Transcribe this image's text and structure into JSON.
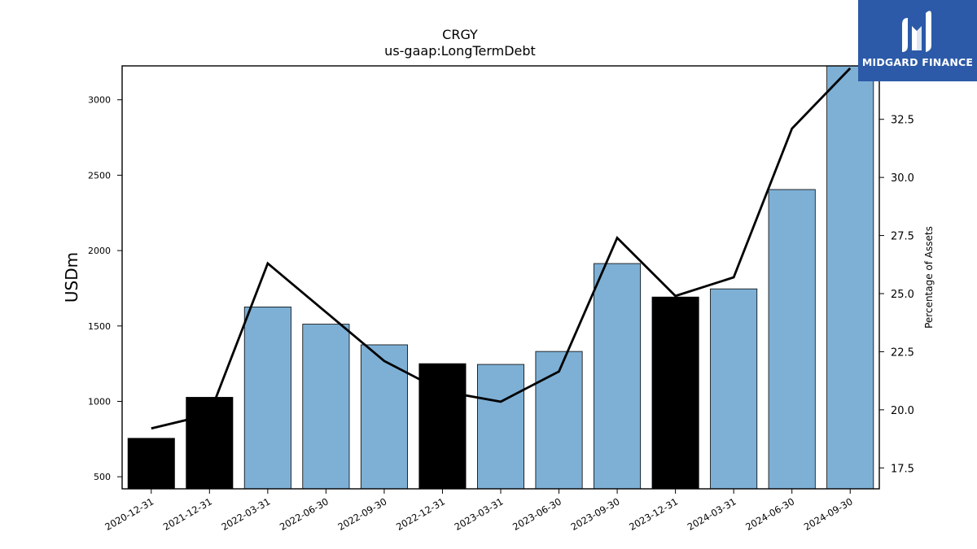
{
  "chart_data": {
    "type": "bar",
    "title": "CRGY",
    "subtitle": "us-gaap:LongTermDebt",
    "ylabel": "USDm",
    "y2label": "Percentage of Assets",
    "categories": [
      "2020-12-31",
      "2021-12-31",
      "2022-03-31",
      "2022-06-30",
      "2022-09-30",
      "2022-12-31",
      "2023-03-31",
      "2023-06-30",
      "2023-09-30",
      "2023-12-31",
      "2024-03-31",
      "2024-06-30",
      "2024-09-30"
    ],
    "values": [
      755,
      1027,
      1626,
      1512,
      1375,
      1250,
      1245,
      1331,
      1914,
      1692,
      1746,
      2405,
      3230
    ],
    "bar_colors": [
      "#000000",
      "#000000",
      "#7eb0d5",
      "#7eb0d5",
      "#7eb0d5",
      "#000000",
      "#7eb0d5",
      "#7eb0d5",
      "#7eb0d5",
      "#000000",
      "#7eb0d5",
      "#7eb0d5",
      "#7eb0d5"
    ],
    "line_values": [
      19.2,
      19.8,
      26.3,
      24.2,
      22.1,
      20.8,
      20.35,
      21.65,
      27.4,
      24.9,
      25.7,
      32.1,
      34.7
    ],
    "ylim": [
      420,
      3225
    ],
    "y2lim": [
      16.6,
      34.8
    ],
    "yticks": [
      500,
      1000,
      1500,
      2000,
      2500,
      3000
    ],
    "y2ticks": [
      "17.5",
      "20.0",
      "22.5",
      "25.0",
      "27.5",
      "30.0",
      "32.5"
    ],
    "grid": false
  },
  "logo": {
    "text": "MIDGARD FINANCE",
    "background": "#2c5aa8"
  }
}
